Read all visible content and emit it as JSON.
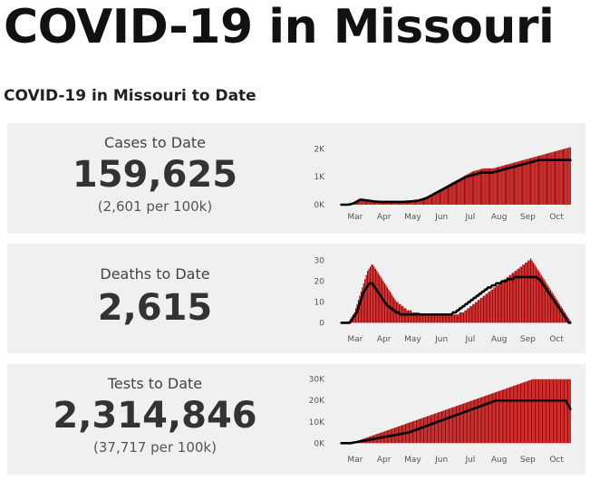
{
  "header": {
    "title": "COVID-19 in Missouri",
    "subtitle": "COVID-19 in Missouri to Date"
  },
  "colors": {
    "bar": "#b00000",
    "line": "#000000",
    "panel": "#f0f0f0"
  },
  "stats": {
    "cases": {
      "label": "Cases to Date",
      "value": "159,625",
      "per100k": "(2,601 per 100k)"
    },
    "deaths": {
      "label": "Deaths to Date",
      "value": "2,615"
    },
    "tests": {
      "label": "Tests to Date",
      "value": "2,314,846",
      "per100k": "(37,717 per 100k)"
    }
  },
  "chart_data": [
    {
      "type": "bar",
      "name": "cases",
      "x_tick_labels": [
        "Mar",
        "Apr",
        "May",
        "Jun",
        "Jul",
        "Aug",
        "Sep",
        "Oct"
      ],
      "y_tick_labels": [
        "2K",
        "1K",
        "0K"
      ],
      "y_ticks": [
        2000,
        1000,
        0
      ],
      "ylim": [
        0,
        2400
      ],
      "daily_values": [
        0,
        0,
        0,
        0,
        0,
        0,
        5,
        10,
        20,
        30,
        45,
        60,
        80,
        100,
        130,
        160,
        180,
        200,
        220,
        230,
        220,
        210,
        200,
        190,
        180,
        170,
        160,
        150,
        140,
        130,
        120,
        110,
        100,
        100,
        100,
        100,
        100,
        95,
        95,
        95,
        95,
        95,
        95,
        95,
        95,
        100,
        100,
        100,
        100,
        100,
        100,
        100,
        100,
        100,
        100,
        100,
        100,
        100,
        100,
        100,
        100,
        100,
        105,
        105,
        105,
        105,
        110,
        110,
        115,
        120,
        125,
        130,
        140,
        150,
        160,
        170,
        180,
        190,
        200,
        215,
        230,
        245,
        260,
        275,
        290,
        310,
        330,
        350,
        370,
        390,
        410,
        430,
        450,
        470,
        490,
        510,
        530,
        550,
        570,
        590,
        610,
        630,
        650,
        670,
        690,
        710,
        730,
        750,
        770,
        790,
        810,
        830,
        850,
        870,
        890,
        910,
        930,
        950,
        970,
        990,
        1010,
        1030,
        1050,
        1070,
        1090,
        1110,
        1130,
        1150,
        1170,
        1190,
        1200,
        1210,
        1220,
        1230,
        1240,
        1250,
        1260,
        1270,
        1280,
        1290,
        1300,
        1300,
        1300,
        1300,
        1300,
        1300,
        1300,
        1300,
        1300,
        1300,
        1310,
        1320,
        1330,
        1340,
        1350,
        1360,
        1370,
        1380,
        1390,
        1400,
        1410,
        1420,
        1430,
        1440,
        1450,
        1460,
        1470,
        1480,
        1490,
        1500,
        1510,
        1520,
        1530,
        1540,
        1550,
        1560,
        1570,
        1580,
        1590,
        1600,
        1610,
        1620,
        1630,
        1640,
        1650,
        1660,
        1670,
        1680,
        1690,
        1700,
        1710,
        1720,
        1730,
        1740,
        1750,
        1760,
        1770,
        1780,
        1790,
        1800,
        1810,
        1820,
        1830,
        1840,
        1850,
        1860,
        1870,
        1880,
        1890,
        1900,
        1910,
        1920,
        1930,
        1940,
        1950,
        1960,
        1970,
        1980,
        1990,
        2000,
        2010,
        2020,
        2030,
        2040,
        2050,
        2060
      ],
      "avg_values": [
        0,
        0,
        0,
        0,
        0,
        0,
        2,
        5,
        10,
        18,
        28,
        40,
        55,
        70,
        90,
        110,
        130,
        150,
        165,
        175,
        175,
        170,
        165,
        160,
        155,
        150,
        145,
        140,
        135,
        130,
        125,
        120,
        115,
        110,
        108,
        106,
        104,
        102,
        100,
        100,
        100,
        100,
        100,
        100,
        100,
        100,
        100,
        100,
        100,
        100,
        100,
        100,
        100,
        100,
        100,
        100,
        100,
        100,
        100,
        100,
        102,
        104,
        106,
        108,
        110,
        112,
        115,
        118,
        122,
        126,
        130,
        135,
        140,
        145,
        150,
        160,
        170,
        180,
        190,
        200,
        215,
        230,
        245,
        260,
        280,
        300,
        320,
        340,
        360,
        380,
        400,
        420,
        440,
        460,
        480,
        500,
        520,
        540,
        560,
        580,
        600,
        620,
        640,
        660,
        680,
        700,
        720,
        740,
        760,
        780,
        800,
        820,
        840,
        860,
        880,
        900,
        920,
        940,
        960,
        980,
        1000,
        1010,
        1020,
        1030,
        1040,
        1050,
        1060,
        1070,
        1080,
        1090,
        1100,
        1110,
        1120,
        1130,
        1140,
        1150,
        1150,
        1150,
        1150,
        1150,
        1150,
        1150,
        1150,
        1150,
        1150,
        1150,
        1160,
        1170,
        1180,
        1190,
        1200,
        1210,
        1220,
        1230,
        1240,
        1250,
        1260,
        1270,
        1280,
        1290,
        1300,
        1310,
        1320,
        1330,
        1340,
        1350,
        1360,
        1370,
        1380,
        1390,
        1400,
        1410,
        1420,
        1430,
        1440,
        1450,
        1460,
        1470,
        1480,
        1490,
        1500,
        1510,
        1520,
        1530,
        1540,
        1550,
        1560,
        1570,
        1580,
        1590,
        1600,
        1600,
        1600,
        1600,
        1600,
        1600,
        1600,
        1600,
        1600,
        1600,
        1600,
        1600,
        1600,
        1600,
        1600,
        1600,
        1600,
        1600,
        1600,
        1600,
        1600,
        1600,
        1600,
        1600,
        1600,
        1600,
        1600,
        1600,
        1600,
        1600,
        1600
      ]
    },
    {
      "type": "bar",
      "name": "deaths",
      "x_tick_labels": [
        "Mar",
        "Apr",
        "May",
        "Jun",
        "Jul",
        "Aug",
        "Sep",
        "Oct"
      ],
      "y_tick_labels": [
        "30",
        "20",
        "10",
        "0"
      ],
      "y_ticks": [
        30,
        20,
        10,
        0
      ],
      "ylim": [
        -2,
        32
      ],
      "daily_values": [
        0,
        0,
        0,
        0,
        0,
        0,
        1,
        2,
        3,
        4,
        5,
        7,
        9,
        11,
        13,
        15,
        17,
        19,
        21,
        23,
        25,
        26,
        27,
        28,
        28,
        27,
        26,
        25,
        24,
        23,
        22,
        21,
        20,
        19,
        18,
        17,
        16,
        15,
        14,
        13,
        12,
        11,
        10,
        10,
        9,
        9,
        8,
        8,
        7,
        7,
        6,
        6,
        6,
        6,
        5,
        5,
        5,
        5,
        5,
        5,
        4,
        4,
        4,
        4,
        4,
        4,
        4,
        4,
        4,
        4,
        4,
        4,
        4,
        4,
        4,
        4,
        4,
        4,
        4,
        4,
        4,
        4,
        4,
        4,
        4,
        4,
        4,
        4,
        4,
        4,
        5,
        5,
        5,
        5,
        6,
        6,
        7,
        7,
        8,
        8,
        9,
        9,
        10,
        10,
        11,
        11,
        12,
        12,
        13,
        13,
        14,
        14,
        15,
        15,
        16,
        16,
        17,
        17,
        18,
        18,
        19,
        19,
        20,
        20,
        21,
        21,
        22,
        22,
        23,
        23,
        24,
        24,
        25,
        25,
        26,
        26,
        27,
        27,
        28,
        28,
        29,
        29,
        30,
        30,
        31,
        30,
        29,
        28,
        27,
        26,
        25,
        24,
        23,
        22,
        21,
        20,
        19,
        18,
        17,
        16,
        15,
        14,
        13,
        12,
        11,
        10,
        9,
        8,
        7,
        6,
        5,
        4,
        3,
        2,
        1
      ],
      "avg_values": [
        0,
        0,
        0,
        0,
        0,
        0,
        0,
        1,
        2,
        3,
        4,
        5,
        7,
        9,
        11,
        13,
        15,
        16,
        17,
        18,
        19,
        19,
        19,
        18,
        17,
        16,
        15,
        14,
        13,
        12,
        11,
        10,
        9,
        8,
        8,
        7,
        7,
        6,
        6,
        5,
        5,
        5,
        4,
        4,
        4,
        4,
        4,
        4,
        4,
        4,
        4,
        4,
        4,
        4,
        4,
        4,
        4,
        4,
        4,
        4,
        4,
        4,
        4,
        4,
        4,
        4,
        4,
        4,
        4,
        4,
        4,
        4,
        4,
        4,
        4,
        4,
        4,
        4,
        4,
        4,
        5,
        5,
        5,
        6,
        6,
        7,
        7,
        8,
        8,
        9,
        9,
        10,
        10,
        11,
        11,
        12,
        12,
        13,
        13,
        14,
        14,
        15,
        15,
        16,
        16,
        17,
        17,
        17,
        18,
        18,
        18,
        19,
        19,
        19,
        19,
        20,
        20,
        20,
        20,
        21,
        21,
        21,
        21,
        21,
        22,
        22,
        22,
        22,
        22,
        22,
        22,
        22,
        22,
        22,
        22,
        22,
        22,
        22,
        22,
        22,
        22,
        21,
        21,
        20,
        19,
        18,
        17,
        16,
        15,
        14,
        13,
        12,
        11,
        10,
        9,
        8,
        7,
        6,
        5,
        4,
        3,
        2,
        1,
        0,
        0
      ]
    },
    {
      "type": "bar",
      "name": "tests",
      "x_tick_labels": [
        "Mar",
        "Apr",
        "May",
        "Jun",
        "Jul",
        "Aug",
        "Sep",
        "Oct"
      ],
      "y_tick_labels": [
        "30K",
        "20K",
        "10K",
        "0K"
      ],
      "y_ticks": [
        30000,
        20000,
        10000,
        0
      ],
      "ylim": [
        -2000,
        32000
      ],
      "daily_values": [
        0,
        0,
        0,
        0,
        0,
        0,
        0,
        0,
        0,
        200,
        400,
        600,
        800,
        1000,
        1200,
        1400,
        1600,
        1800,
        2000,
        2200,
        2400,
        2600,
        2800,
        3000,
        3200,
        3400,
        3600,
        3800,
        4000,
        4200,
        4400,
        4600,
        4800,
        5000,
        5200,
        5400,
        5600,
        5800,
        6000,
        6200,
        6400,
        6600,
        6800,
        7000,
        7200,
        7400,
        7600,
        7800,
        8000,
        8200,
        8400,
        8600,
        8800,
        9000,
        9200,
        9400,
        9600,
        9800,
        10000,
        10200,
        10400,
        10600,
        10800,
        11000,
        11200,
        11400,
        11600,
        11800,
        12000,
        12200,
        12400,
        12600,
        12800,
        13000,
        13200,
        13400,
        13600,
        13800,
        14000,
        14200,
        14400,
        14600,
        14800,
        15000,
        15200,
        15400,
        15600,
        15800,
        16000,
        16200,
        16400,
        16600,
        16800,
        17000,
        17200,
        17400,
        17600,
        17800,
        18000,
        18200,
        18400,
        18600,
        18800,
        19000,
        19200,
        19400,
        19600,
        19800,
        20000,
        20200,
        20400,
        20600,
        20800,
        21000,
        21200,
        21400,
        21600,
        21800,
        22000,
        22200,
        22400,
        22600,
        22800,
        23000,
        23200,
        23400,
        23600,
        23800,
        24000,
        24200,
        24400,
        24600,
        24800,
        25000,
        25200,
        25400,
        25600,
        25800,
        26000,
        26200,
        26400,
        26600,
        26800,
        27000,
        27200,
        27400,
        27600,
        27800,
        28000,
        28200,
        28400,
        28600,
        28800,
        29000,
        29200,
        29400,
        29600,
        29800,
        30000,
        30000,
        30000,
        30000,
        30000,
        30000,
        30000,
        30000,
        30000,
        30000,
        30000,
        30000,
        30000,
        30000,
        30000,
        30000,
        30000,
        30000,
        30000,
        30000,
        30000,
        30000,
        30000,
        30000,
        30000,
        30000,
        30000,
        30000,
        30000,
        30000,
        30000,
        30000
      ],
      "avg_values": [
        0,
        0,
        0,
        0,
        0,
        0,
        0,
        0,
        0,
        100,
        200,
        300,
        400,
        500,
        600,
        700,
        800,
        900,
        1000,
        1100,
        1200,
        1300,
        1400,
        1500,
        1600,
        1700,
        1800,
        1900,
        2000,
        2100,
        2200,
        2300,
        2400,
        2500,
        2600,
        2700,
        2800,
        2900,
        3000,
        3100,
        3200,
        3300,
        3400,
        3500,
        3600,
        3700,
        3800,
        3900,
        4000,
        4100,
        4200,
        4300,
        4400,
        4500,
        4600,
        4700,
        4800,
        4900,
        5000,
        5200,
        5400,
        5600,
        5800,
        6000,
        6200,
        6400,
        6600,
        6800,
        7000,
        7200,
        7400,
        7600,
        7800,
        8000,
        8200,
        8400,
        8600,
        8800,
        9000,
        9200,
        9400,
        9600,
        9800,
        10000,
        10200,
        10400,
        10600,
        10800,
        11000,
        11200,
        11400,
        11600,
        11800,
        12000,
        12200,
        12400,
        12600,
        12800,
        13000,
        13200,
        13400,
        13600,
        13800,
        14000,
        14200,
        14400,
        14600,
        14800,
        15000,
        15200,
        15400,
        15600,
        15800,
        16000,
        16200,
        16400,
        16600,
        16800,
        17000,
        17200,
        17400,
        17600,
        17800,
        18000,
        18200,
        18400,
        18600,
        18800,
        19000,
        19200,
        19400,
        19600,
        19800,
        20000,
        20000,
        20000,
        20000,
        20000,
        20000,
        20000,
        20000,
        20000,
        20000,
        20000,
        20000,
        20000,
        20000,
        20000,
        20000,
        20000,
        20000,
        20000,
        20000,
        20000,
        20000,
        20000,
        20000,
        20000,
        20000,
        20000,
        20000,
        20000,
        20000,
        20000,
        20000,
        20000,
        20000,
        20000,
        20000,
        20000,
        20000,
        20000,
        20000,
        20000,
        20000,
        20000,
        20000,
        20000,
        20000,
        20000,
        20000,
        20000,
        20000,
        20000,
        20000,
        20000,
        20000,
        20000,
        20000,
        20000,
        20000,
        20000,
        20000,
        20000,
        19000,
        18000,
        17000,
        16000
      ]
    }
  ]
}
